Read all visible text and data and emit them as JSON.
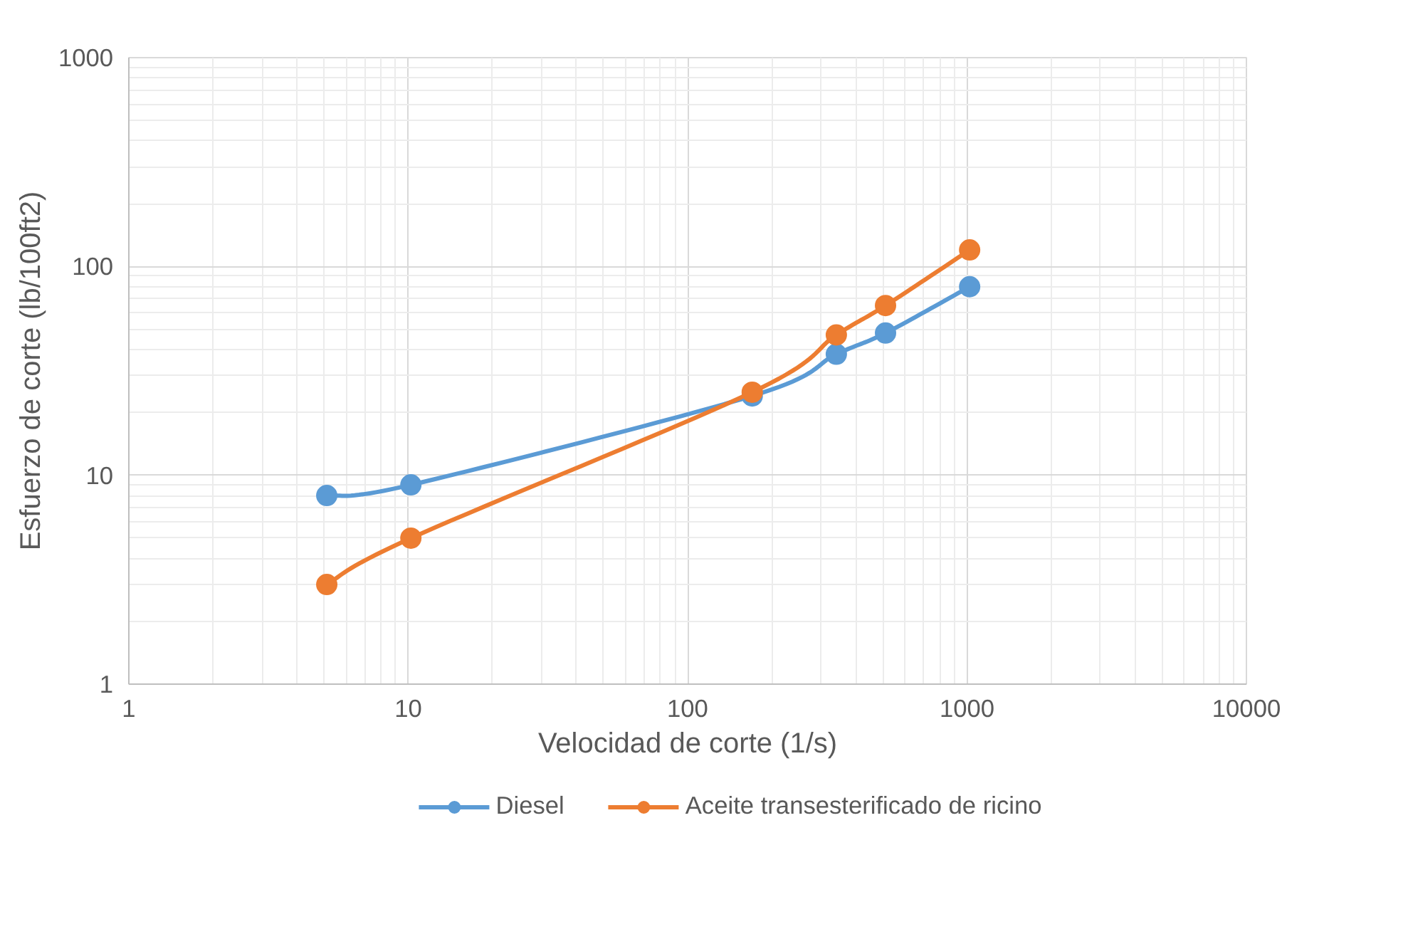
{
  "chart_data": {
    "type": "line",
    "xlabel": "Velocidad de corte (1/s)",
    "ylabel": "Esfuerzo de corte (lb/100ft2)",
    "x": [
      5.11,
      10.22,
      170.3,
      340.6,
      510.9,
      1021.8
    ],
    "series": [
      {
        "name": "Diesel",
        "color": "#5b9bd5",
        "values": [
          8,
          9,
          24,
          38,
          48,
          80
        ]
      },
      {
        "name": "Aceite transesterificado de ricino",
        "color": "#ed7d31",
        "values": [
          3,
          5,
          25,
          47,
          65,
          120
        ]
      }
    ],
    "log": "xy",
    "xlim": [
      1,
      10000
    ],
    "ylim": [
      1,
      1000
    ],
    "xticks": [
      1,
      10,
      100,
      1000,
      10000
    ],
    "yticks": [
      1,
      10,
      100,
      1000
    ],
    "grid": true,
    "legend": "bottom",
    "marker": "circle",
    "line_style": "solid"
  }
}
